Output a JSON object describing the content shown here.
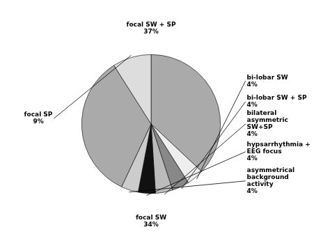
{
  "chart_data": {
    "type": "pie",
    "categories": [
      "focal SW + SP",
      "bi-lobar SW",
      "bi-lobar SW + SP",
      "bilateral\nasymmetric\nSW+SP",
      "hypsarrhythmia +\nEEG focus",
      "asymmetrical\nbackground\nactivity",
      "focal SW",
      "focal SP"
    ],
    "values": [
      37,
      4,
      4,
      4,
      4,
      4,
      34,
      9
    ],
    "value_labels": [
      "37%",
      "4%",
      "4%",
      "4%",
      "4%",
      "4%",
      "34%",
      "9%"
    ],
    "data_labels": true,
    "colors": [
      "#aaaaaa",
      "#eeeeee",
      "#888888",
      "#bbbbbb",
      "#111111",
      "#cccccc",
      "#aaaaaa",
      "#dddddd"
    ]
  }
}
